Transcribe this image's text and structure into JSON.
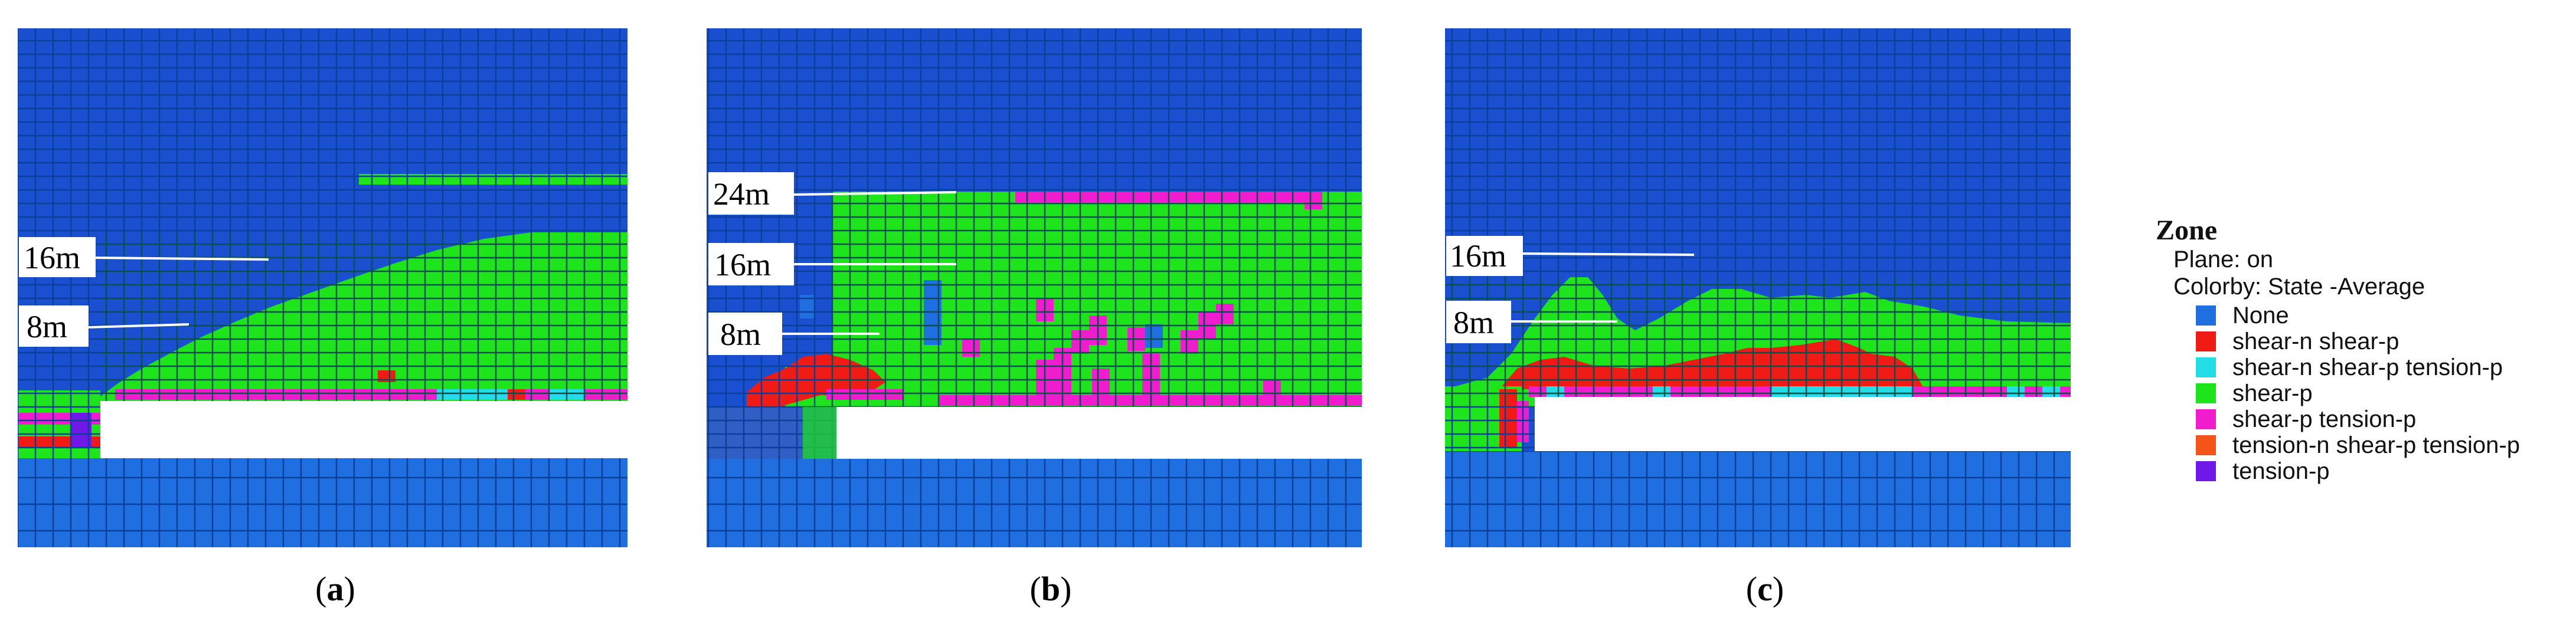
{
  "legend": {
    "title": "Zone",
    "plane": "Plane: on",
    "colorby": "Colorby: State  -Average",
    "items": [
      {
        "label": "None",
        "color": "#1f6fe0"
      },
      {
        "label": "shear-n shear-p",
        "color": "#ef1b14"
      },
      {
        "label": "shear-n shear-p tension-p",
        "color": "#22dce6"
      },
      {
        "label": "shear-p",
        "color": "#1ee51b"
      },
      {
        "label": "shear-p tension-p",
        "color": "#f21ccf"
      },
      {
        "label": "tension-n shear-p tension-p",
        "color": "#f4541a"
      },
      {
        "label": "tension-p",
        "color": "#7018e8"
      }
    ]
  },
  "panels": [
    {
      "letter": "a",
      "caption_open": "(",
      "caption_close": ")",
      "labels": [
        {
          "text": "16m"
        },
        {
          "text": "8m"
        }
      ]
    },
    {
      "letter": "b",
      "caption_open": "(",
      "caption_close": ")",
      "labels": [
        {
          "text": "24m"
        },
        {
          "text": "16m"
        },
        {
          "text": "8m"
        }
      ]
    },
    {
      "letter": "c",
      "caption_open": "(",
      "caption_close": ")",
      "labels": [
        {
          "text": "16m"
        },
        {
          "text": "8m"
        }
      ]
    }
  ]
}
